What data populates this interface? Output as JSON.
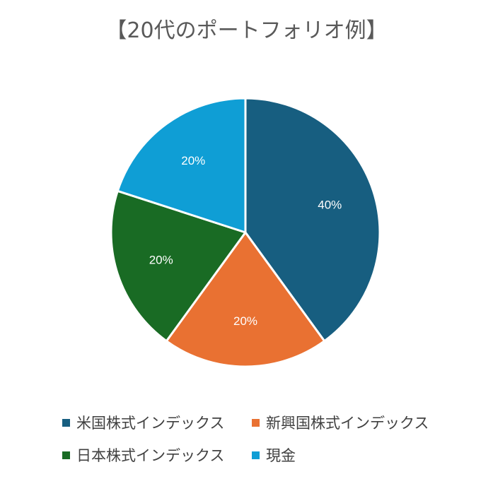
{
  "chart_data": {
    "type": "pie",
    "title": "【20代のポートフォリオ例】",
    "slices": [
      {
        "label": "米国株式インデックス",
        "value": 40,
        "data_label": "40%",
        "color": "#175E80"
      },
      {
        "label": "新興国株式インデックス",
        "value": 20,
        "data_label": "20%",
        "color": "#E97132"
      },
      {
        "label": "日本株式インデックス",
        "value": 20,
        "data_label": "20%",
        "color": "#196B24"
      },
      {
        "label": "現金",
        "value": 20,
        "data_label": "20%",
        "color": "#0F9ED5"
      }
    ],
    "legend_position": "bottom",
    "start_angle": "12 o'clock, clockwise"
  }
}
